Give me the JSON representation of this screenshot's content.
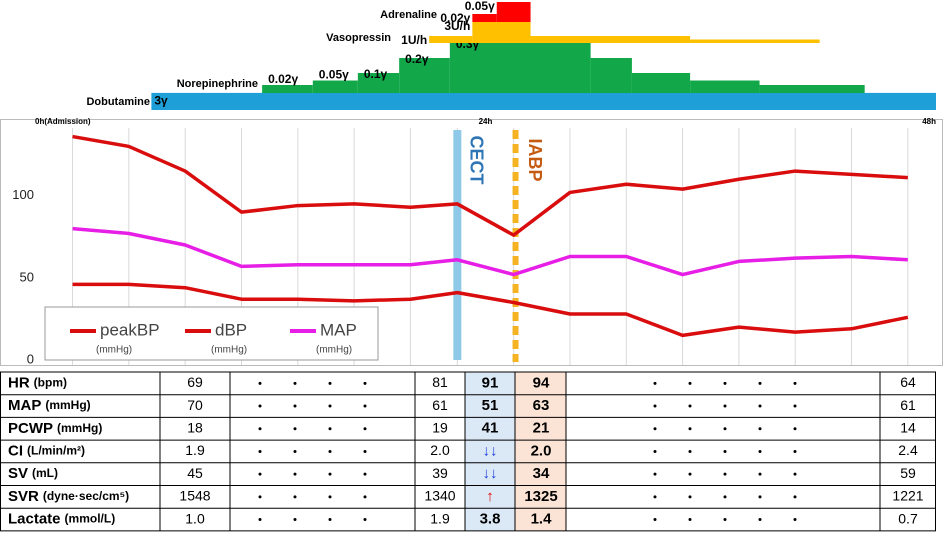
{
  "chart_data": {
    "type": "line",
    "xlim": [
      0,
      48
    ],
    "xticks": [
      {
        "value": 0,
        "label": "0h(Admission)"
      },
      {
        "value": 24,
        "label": "24h"
      },
      {
        "value": 48,
        "label": "48h"
      }
    ],
    "ylim": [
      0,
      140
    ],
    "yticks": [
      0,
      50,
      100
    ],
    "x": [
      2,
      5,
      8,
      11,
      14,
      17,
      20,
      22.5,
      25.5,
      28.5,
      31.5,
      34.5,
      37.5,
      40.5,
      43.5,
      46.5
    ],
    "series": [
      {
        "name": "peakBP",
        "unit": "(mmHg)",
        "color": "#d90d0d",
        "values": [
          136,
          130,
          115,
          90,
          94,
          95,
          93,
          95,
          76,
          102,
          107,
          104,
          110,
          115,
          113,
          111
        ]
      },
      {
        "name": "dBP",
        "unit": "(mmHg)",
        "color": "#d90d0d",
        "values": [
          46,
          46,
          44,
          37,
          37,
          36,
          37,
          41,
          35,
          28,
          28,
          15,
          20,
          17,
          19,
          26
        ]
      },
      {
        "name": "MAP",
        "unit": "(mmHg)",
        "color": "#e61ee6",
        "values": [
          80,
          77,
          70,
          57,
          58,
          58,
          58,
          61,
          52,
          63,
          63,
          52,
          60,
          62,
          63,
          61
        ]
      }
    ],
    "legend": "bottom-left",
    "xgrid": true,
    "annotations": [
      {
        "text": "CECT",
        "x": 22.5,
        "style": "bar",
        "color": "#8ecae8",
        "text_color": "#2e75b6"
      },
      {
        "text": "IABP",
        "x": 25.6,
        "style": "dashed",
        "color": "#f5b324",
        "text_color": "#c55a11"
      }
    ]
  },
  "infusions": [
    {
      "name": "Dobutamine",
      "color": "#1f9fd8",
      "steps": [
        {
          "from": 6.2,
          "to": 48,
          "dose": 3,
          "label": "3γ"
        }
      ]
    },
    {
      "name": "Norepinephrine",
      "color": "#12a84a",
      "steps": [
        {
          "from": 12.1,
          "to": 14.8,
          "dose": 0.02,
          "label": "0.02γ"
        },
        {
          "from": 14.8,
          "to": 17.2,
          "dose": 0.05,
          "label": "0.05γ"
        },
        {
          "from": 17.2,
          "to": 19.4,
          "dose": 0.1,
          "label": "0.1γ"
        },
        {
          "from": 19.4,
          "to": 22.1,
          "dose": 0.2,
          "label": "0.2γ"
        },
        {
          "from": 22.1,
          "to": 29.6,
          "dose": 0.3,
          "label": "0.3γ"
        },
        {
          "from": 29.6,
          "to": 31.8,
          "dose": 0.2
        },
        {
          "from": 31.8,
          "to": 34.9,
          "dose": 0.1
        },
        {
          "from": 34.9,
          "to": 38.6,
          "dose": 0.05
        },
        {
          "from": 38.6,
          "to": 44.2,
          "dose": 0.02
        }
      ]
    },
    {
      "name": "Vasopressin",
      "color": "#ffc000",
      "steps": [
        {
          "from": 21.0,
          "to": 23.3,
          "dose": 1,
          "label": "1U/h"
        },
        {
          "from": 23.3,
          "to": 26.4,
          "dose": 3,
          "label": "3U/h"
        },
        {
          "from": 26.4,
          "to": 34.9,
          "dose": 1
        },
        {
          "from": 34.9,
          "to": 41.8,
          "dose": 0.5
        }
      ]
    },
    {
      "name": "Adrenaline",
      "color": "#ff0000",
      "steps": [
        {
          "from": 23.3,
          "to": 24.6,
          "dose": 0.02,
          "label": "0.02γ"
        },
        {
          "from": 24.6,
          "to": 26.4,
          "dose": 0.05,
          "label": "0.05γ"
        }
      ]
    }
  ],
  "table": {
    "rows": [
      {
        "name": "HR",
        "unit": "(bpm)",
        "cells": [
          "69",
          "81",
          "91",
          "94",
          "64"
        ]
      },
      {
        "name": "MAP",
        "unit": "(mmHg)",
        "cells": [
          "70",
          "61",
          "51",
          "63",
          "61"
        ]
      },
      {
        "name": "PCWP",
        "unit": "(mmHg)",
        "cells": [
          "18",
          "19",
          "41",
          "21",
          "14"
        ]
      },
      {
        "name": "CI",
        "unit": "(L/min/m²)",
        "cells": [
          "1.9",
          "2.0",
          "↓↓",
          "2.0",
          "2.4"
        ]
      },
      {
        "name": "SV",
        "unit": "(mL)",
        "cells": [
          "45",
          "39",
          "↓↓",
          "34",
          "59"
        ]
      },
      {
        "name": "SVR",
        "unit": "(dyne·sec/cm⁵)",
        "cells": [
          "1548",
          "1340",
          "↑",
          "1325",
          "1221"
        ]
      },
      {
        "name": "Lactate",
        "unit": "(mmol/L)",
        "cells": [
          "1.0",
          "1.9",
          "3.8",
          "1.4",
          "0.7"
        ]
      }
    ]
  }
}
